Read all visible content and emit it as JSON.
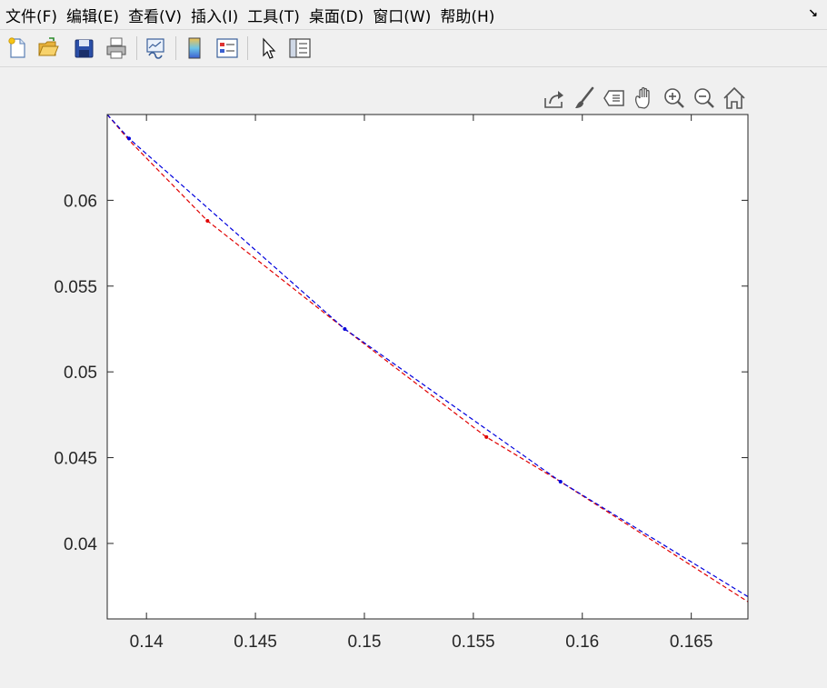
{
  "menu": {
    "items": [
      "文件(F)",
      "编辑(E)",
      "查看(V)",
      "插入(I)",
      "工具(T)",
      "桌面(D)",
      "窗口(W)",
      "帮助(H)"
    ],
    "dock_glyph": "↘"
  },
  "toolbar": {
    "icons": [
      "new-figure-icon",
      "open-file-icon",
      "save-icon",
      "print-icon",
      "link-plot-icon",
      "colorbar-icon",
      "legend-icon",
      "edit-plot-arrow-icon",
      "property-inspector-icon"
    ]
  },
  "axes_toolbar": {
    "icons": [
      "export-icon",
      "brush-icon",
      "data-tips-icon",
      "pan-icon",
      "zoom-in-icon",
      "zoom-out-icon",
      "home-icon"
    ]
  },
  "colors": {
    "red_series": "#e00000",
    "blue_series": "#0000dd",
    "axes_background": "#ffffff",
    "figure_background": "#f0f0f0"
  },
  "chart_data": {
    "type": "line",
    "title": "",
    "xlabel": "",
    "ylabel": "",
    "xlim": [
      0.1382,
      0.1676
    ],
    "ylim": [
      0.0356,
      0.065
    ],
    "xticks": [
      0.14,
      0.145,
      0.15,
      0.155,
      0.16,
      0.165
    ],
    "xtick_labels": [
      "0.14",
      "0.145",
      "0.15",
      "0.155",
      "0.16",
      "0.165"
    ],
    "yticks": [
      0.04,
      0.045,
      0.05,
      0.055,
      0.06
    ],
    "ytick_labels": [
      "0.04",
      "0.045",
      "0.05",
      "0.055",
      "0.06"
    ],
    "grid": false,
    "line_style": "dashed",
    "series": [
      {
        "color": "#e00000",
        "x": [
          0.1382,
          0.1392,
          0.1428,
          0.1491,
          0.1556,
          0.159,
          0.1676
        ],
        "y": [
          0.065,
          0.0635,
          0.0588,
          0.0525,
          0.0462,
          0.0436,
          0.0366
        ],
        "markers": [
          {
            "x": 0.1428,
            "y": 0.0588
          },
          {
            "x": 0.1556,
            "y": 0.0462
          }
        ]
      },
      {
        "color": "#0000dd",
        "x": [
          0.1382,
          0.1392,
          0.1491,
          0.159,
          0.1676
        ],
        "y": [
          0.065,
          0.0636,
          0.0525,
          0.0436,
          0.0369
        ],
        "markers": [
          {
            "x": 0.1392,
            "y": 0.0636
          },
          {
            "x": 0.1491,
            "y": 0.0525
          },
          {
            "x": 0.159,
            "y": 0.0436
          }
        ]
      }
    ]
  }
}
